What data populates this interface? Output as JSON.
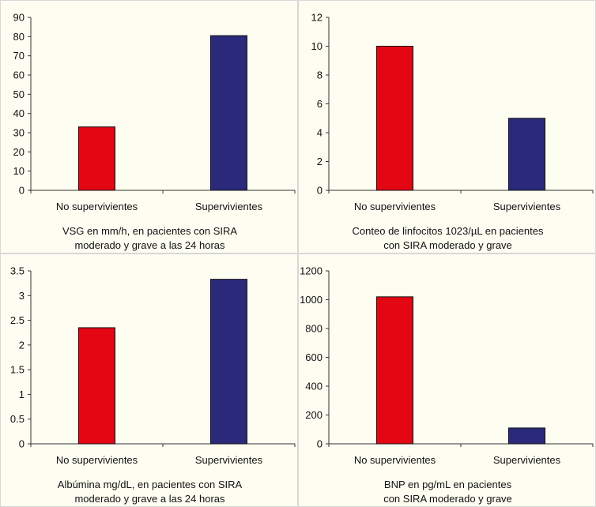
{
  "colors": {
    "red": "#e30613",
    "navy": "#2b2a7a",
    "axis": "#333333"
  },
  "chart_data": [
    {
      "type": "bar",
      "categories": [
        "No supervivientes",
        "Supervivientes"
      ],
      "values": [
        33,
        80.5
      ],
      "ylim": [
        0,
        90
      ],
      "yticks": [
        0,
        10,
        20,
        30,
        40,
        50,
        60,
        70,
        80,
        90
      ],
      "ytick_labels": [
        "0",
        "10",
        "20",
        "30",
        "40",
        "50",
        "60",
        "70",
        "80",
        "90"
      ],
      "title_lines": [
        "VSG en mm/h, en pacientes con SIRA",
        "moderado y grave a las 24 horas"
      ],
      "xlabel": "",
      "ylabel": ""
    },
    {
      "type": "bar",
      "categories": [
        "No supervivientes",
        "Supervivientes"
      ],
      "values": [
        10,
        5
      ],
      "ylim": [
        0,
        12
      ],
      "yticks": [
        0,
        2,
        4,
        6,
        8,
        10,
        12
      ],
      "ytick_labels": [
        "0",
        "2",
        "4",
        "6",
        "8",
        "10",
        "12"
      ],
      "title_lines": [
        "Conteo de linfocitos 1023/µL en pacientes",
        "con SIRA moderado y grave"
      ],
      "xlabel": "",
      "ylabel": ""
    },
    {
      "type": "bar",
      "categories": [
        "No supervivientes",
        "Supervivientes"
      ],
      "values": [
        2.35,
        3.33
      ],
      "ylim": [
        0,
        3.5
      ],
      "yticks": [
        0,
        0.5,
        1,
        1.5,
        2,
        2.5,
        3,
        3.5
      ],
      "ytick_labels": [
        "0",
        "0.5",
        "1",
        "1.5",
        "2",
        "2.5",
        "3",
        "3.5"
      ],
      "title_lines": [
        "Albúmina mg/dL, en pacientes con SIRA",
        "moderado y grave a las 24 horas"
      ],
      "xlabel": "",
      "ylabel": ""
    },
    {
      "type": "bar",
      "categories": [
        "No supervivientes",
        "Supervivientes"
      ],
      "values": [
        1020,
        110
      ],
      "ylim": [
        0,
        1200
      ],
      "yticks": [
        0,
        200,
        400,
        600,
        800,
        1000,
        1200
      ],
      "ytick_labels": [
        "0",
        "200",
        "400",
        "600",
        "800",
        "1000",
        "1200"
      ],
      "title_lines": [
        "BNP en pg/mL en pacientes",
        "con SIRA moderado y grave"
      ],
      "xlabel": "",
      "ylabel": ""
    }
  ]
}
